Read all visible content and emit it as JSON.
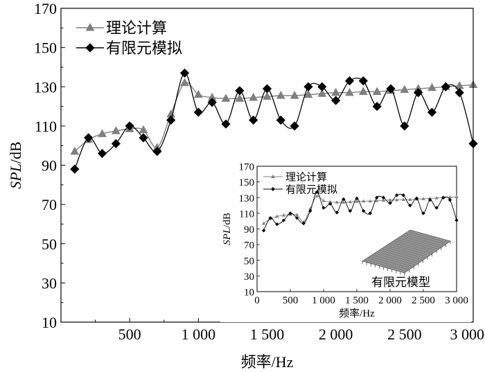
{
  "chart_data": {
    "type": "line",
    "xlabel": "频率/Hz",
    "ylabel_italic": "SPL",
    "ylabel_unit": "/dB",
    "xlim": [
      0,
      3000
    ],
    "ylim": [
      10,
      170
    ],
    "xticks": [
      500,
      1000,
      1500,
      2000,
      2500,
      3000
    ],
    "xtick_labels": [
      "500",
      "1 000",
      "1 500",
      "2 000",
      "2 500",
      "3 000"
    ],
    "yticks": [
      10,
      30,
      50,
      70,
      90,
      110,
      130,
      150,
      170
    ],
    "legend_position": "top-left",
    "series": [
      {
        "name": "理论计算",
        "marker": "triangle",
        "color": "#7f7f7f",
        "x": [
          100,
          200,
          300,
          400,
          500,
          600,
          700,
          800,
          900,
          1000,
          1100,
          1200,
          1300,
          1400,
          1500,
          1600,
          1700,
          1800,
          1900,
          2000,
          2100,
          2200,
          2300,
          2400,
          2500,
          2600,
          2700,
          2800,
          2900,
          3000
        ],
        "y": [
          97,
          103,
          106,
          107.5,
          108.5,
          108,
          99,
          116,
          132,
          126,
          124.5,
          124,
          124,
          124.5,
          125,
          125.5,
          125.5,
          126,
          126.5,
          127,
          127,
          127.5,
          127.5,
          128,
          128.5,
          129,
          129.5,
          130,
          130.5,
          131
        ]
      },
      {
        "name": "有限元模拟",
        "marker": "diamond",
        "color": "#000000",
        "x": [
          100,
          200,
          300,
          400,
          500,
          600,
          700,
          800,
          900,
          1000,
          1100,
          1200,
          1300,
          1400,
          1500,
          1600,
          1700,
          1800,
          1900,
          2000,
          2100,
          2200,
          2300,
          2400,
          2500,
          2600,
          2700,
          2800,
          2900,
          3000
        ],
        "y": [
          88,
          104,
          96,
          101,
          110,
          104,
          97,
          113,
          137,
          117,
          122,
          111,
          128,
          113,
          129,
          113,
          110,
          130,
          130,
          123,
          133,
          133,
          120,
          129,
          110,
          127,
          117,
          130,
          127,
          101
        ]
      }
    ],
    "inset": {
      "xlabel": "频率/Hz",
      "ylabel_italic": "SPL",
      "ylabel_unit": "/dB",
      "xticks": [
        0,
        500,
        1000,
        1500,
        2000,
        2500,
        3000
      ],
      "xtick_labels": [
        "0",
        "500",
        "1 000",
        "1 500",
        "2 000",
        "2 500",
        "3 000"
      ],
      "yticks": [
        10,
        30,
        50,
        70,
        90,
        110,
        130,
        150,
        170
      ],
      "ytick_labels": [
        "10",
        "30",
        "50",
        "70",
        "90",
        "110",
        "130",
        "150",
        "170"
      ],
      "model_label": "有限元模型"
    }
  }
}
